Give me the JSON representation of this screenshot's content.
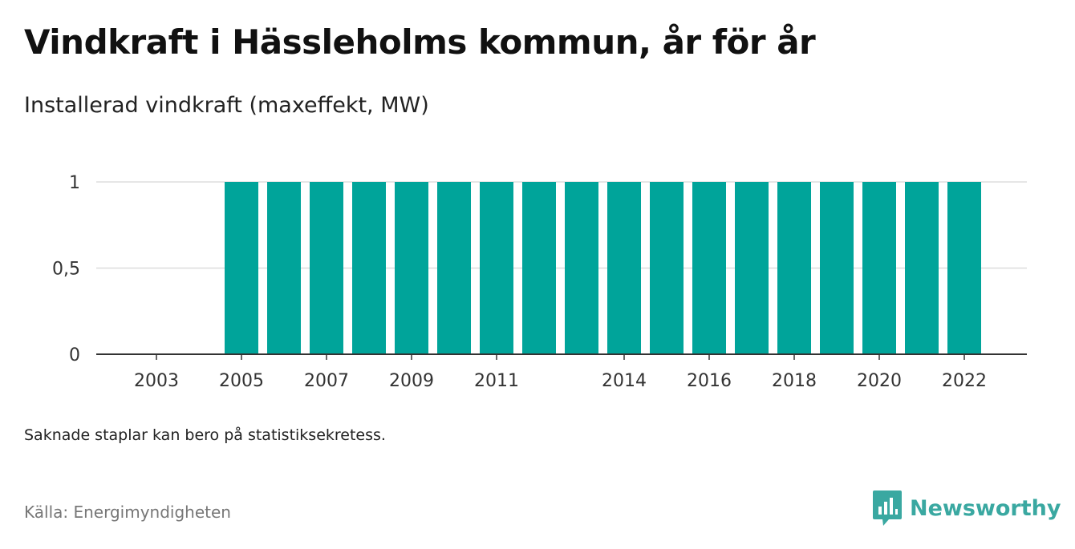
{
  "header": {
    "title": "Vindkraft i Hässleholms kommun, år för år",
    "subtitle": "Installerad vindkraft (maxeffekt, MW)"
  },
  "footer": {
    "note": "Saknade staplar kan bero på statistiksekretess.",
    "source": "Källa: Energimyndigheten",
    "brand": "Newsworthy"
  },
  "colors": {
    "bar": "#00a49a",
    "brand": "#3aa8a1",
    "grid": "#dddddd",
    "axis": "#333333"
  },
  "icons": {
    "logo": "bar-chart-speech-bubble-icon"
  },
  "chart_data": {
    "type": "bar",
    "categories": [
      "2003",
      "2004",
      "2005",
      "2006",
      "2007",
      "2008",
      "2009",
      "2010",
      "2011",
      "2012",
      "2013",
      "2014",
      "2015",
      "2016",
      "2017",
      "2018",
      "2019",
      "2020",
      "2021",
      "2022"
    ],
    "values": [
      null,
      null,
      1,
      1,
      1,
      1,
      1,
      1,
      1,
      1,
      1,
      1,
      1,
      1,
      1,
      1,
      1,
      1,
      1,
      1
    ],
    "x_tick_labels": [
      "2003",
      "2005",
      "2007",
      "2009",
      "2011",
      "2014",
      "2016",
      "2018",
      "2020",
      "2022"
    ],
    "y_ticks": [
      0,
      0.5,
      1
    ],
    "y_tick_labels": [
      "0",
      "0,5",
      "1"
    ],
    "ylim": [
      0,
      1
    ],
    "grid": true,
    "legend": "none"
  }
}
